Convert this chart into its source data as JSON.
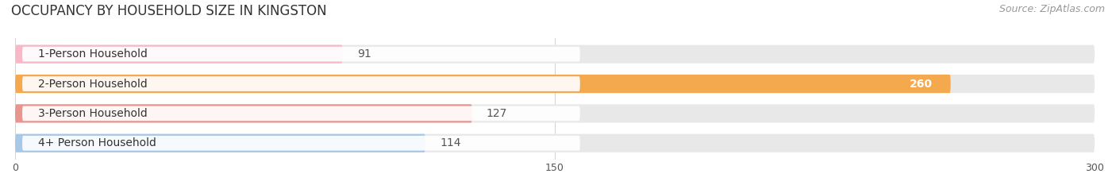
{
  "title": "OCCUPANCY BY HOUSEHOLD SIZE IN KINGSTON",
  "source": "Source: ZipAtlas.com",
  "categories": [
    "1-Person Household",
    "2-Person Household",
    "3-Person Household",
    "4+ Person Household"
  ],
  "values": [
    91,
    260,
    127,
    114
  ],
  "bar_colors": [
    "#f9b8c8",
    "#f5a94e",
    "#e8958f",
    "#a8c8e8"
  ],
  "track_color": "#e8e8e8",
  "value_colors": [
    "#555555",
    "#ffffff",
    "#555555",
    "#555555"
  ],
  "xlim_min": 0,
  "xlim_max": 300,
  "xticks": [
    0,
    150,
    300
  ],
  "title_fontsize": 12,
  "source_fontsize": 9,
  "label_fontsize": 10,
  "value_fontsize": 10,
  "background_color": "#ffffff",
  "bar_height": 0.62,
  "figsize": [
    14.06,
    2.33
  ]
}
